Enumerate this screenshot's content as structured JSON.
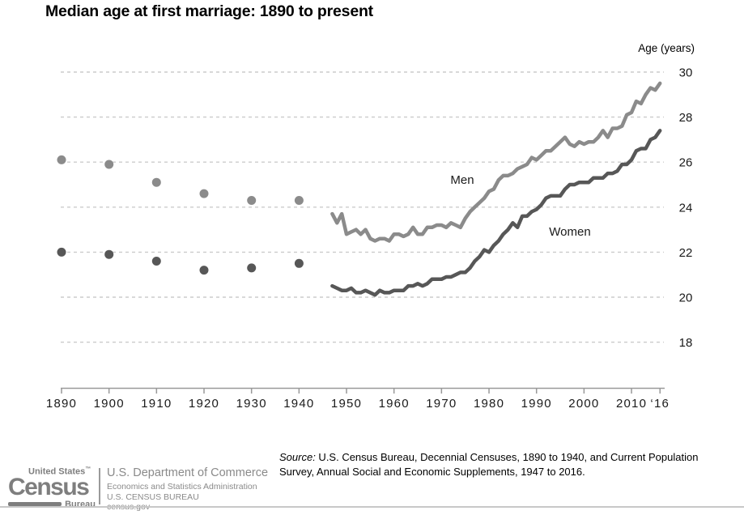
{
  "title": "Median age at first marriage: 1890 to present",
  "labels": {
    "men": "Men",
    "women": "Women"
  },
  "source": {
    "prefix": "Source:",
    "line1": " U.S. Census Bureau, Decennial Censuses, 1890 to 1940, and Current Population",
    "line2": "Survey, Annual Social and Economic Supplements, 1947 to 2016."
  },
  "logo": {
    "united_states": "United States",
    "trademark": "™",
    "census": "Census",
    "bureau": "Bureau",
    "department": "U.S. Department of Commerce",
    "administration": "Economics and Statistics Administration",
    "bureau_caps": "U.S. CENSUS BUREAU",
    "website": "census.gov"
  },
  "colors": {
    "men": "#8b8b8b",
    "women": "#575757",
    "grid": "#cbcbcb",
    "axis": "#999999",
    "logo_gray": "#7e7e7e",
    "bottom_rule": "#c8c8c8",
    "text": "#1a1a1a"
  },
  "chart_data": {
    "type": "line",
    "title": "Median age at first marriage: 1890 to present",
    "xlabel": "",
    "ylabel": "Age (years)",
    "ylim": [
      16,
      31
    ],
    "y_ticks": [
      30,
      28,
      26,
      24,
      22,
      20,
      18
    ],
    "x_ticks": [
      {
        "year": 1890,
        "label": "1890"
      },
      {
        "year": 1900,
        "label": "1900"
      },
      {
        "year": 1910,
        "label": "1910"
      },
      {
        "year": 1920,
        "label": "1920"
      },
      {
        "year": 1930,
        "label": "1930"
      },
      {
        "year": 1940,
        "label": "1940"
      },
      {
        "year": 1950,
        "label": "1950"
      },
      {
        "year": 1960,
        "label": "1960"
      },
      {
        "year": 1970,
        "label": "1970"
      },
      {
        "year": 1980,
        "label": "1980"
      },
      {
        "year": 1990,
        "label": "1990"
      },
      {
        "year": 2000,
        "label": "2000"
      },
      {
        "year": 2010,
        "label": "2010"
      },
      {
        "year": 2016,
        "label": "‘16"
      }
    ],
    "grid": "horizontal-dashed",
    "legend": "inline-labels",
    "series": [
      {
        "id": "men-census",
        "name": "Men (Decennial Censuses 1890–1940)",
        "type": "scatter",
        "color": "#8b8b8b",
        "x": [
          1890,
          1900,
          1910,
          1920,
          1930,
          1940
        ],
        "y": [
          26.1,
          25.9,
          25.1,
          24.6,
          24.3,
          24.3
        ]
      },
      {
        "id": "women-census",
        "name": "Women (Decennial Censuses 1890–1940)",
        "type": "scatter",
        "color": "#575757",
        "x": [
          1890,
          1900,
          1910,
          1920,
          1930,
          1940
        ],
        "y": [
          22.0,
          21.9,
          21.6,
          21.2,
          21.3,
          21.5
        ]
      },
      {
        "id": "men-cps",
        "name": "Men (CPS 1947–2016)",
        "type": "line",
        "color": "#8b8b8b",
        "x": {
          "start": 1947,
          "end": 2016,
          "step": 1
        },
        "values": [
          23.7,
          23.3,
          23.7,
          22.8,
          22.9,
          23.0,
          22.8,
          23.0,
          22.6,
          22.5,
          22.6,
          22.6,
          22.5,
          22.8,
          22.8,
          22.7,
          22.8,
          23.1,
          22.8,
          22.8,
          23.1,
          23.1,
          23.2,
          23.2,
          23.1,
          23.3,
          23.2,
          23.1,
          23.5,
          23.8,
          24.0,
          24.2,
          24.4,
          24.7,
          24.8,
          25.2,
          25.4,
          25.4,
          25.5,
          25.7,
          25.8,
          25.9,
          26.2,
          26.1,
          26.3,
          26.5,
          26.5,
          26.7,
          26.9,
          27.1,
          26.8,
          26.7,
          26.9,
          26.8,
          26.9,
          26.9,
          27.1,
          27.4,
          27.1,
          27.5,
          27.5,
          27.6,
          28.1,
          28.2,
          28.7,
          28.6,
          29.0,
          29.3,
          29.2,
          29.5
        ]
      },
      {
        "id": "women-cps",
        "name": "Women (CPS 1947–2016)",
        "type": "line",
        "color": "#575757",
        "x": {
          "start": 1947,
          "end": 2016,
          "step": 1
        },
        "values": [
          20.5,
          20.4,
          20.3,
          20.3,
          20.4,
          20.2,
          20.2,
          20.3,
          20.2,
          20.1,
          20.3,
          20.2,
          20.2,
          20.3,
          20.3,
          20.3,
          20.5,
          20.5,
          20.6,
          20.5,
          20.6,
          20.8,
          20.8,
          20.8,
          20.9,
          20.9,
          21.0,
          21.1,
          21.1,
          21.3,
          21.6,
          21.8,
          22.1,
          22.0,
          22.3,
          22.5,
          22.8,
          23.0,
          23.3,
          23.1,
          23.6,
          23.6,
          23.8,
          23.9,
          24.1,
          24.4,
          24.5,
          24.5,
          24.5,
          24.8,
          25.0,
          25.0,
          25.1,
          25.1,
          25.1,
          25.3,
          25.3,
          25.3,
          25.5,
          25.5,
          25.6,
          25.9,
          25.9,
          26.1,
          26.5,
          26.6,
          26.6,
          27.0,
          27.1,
          27.4
        ]
      }
    ]
  }
}
